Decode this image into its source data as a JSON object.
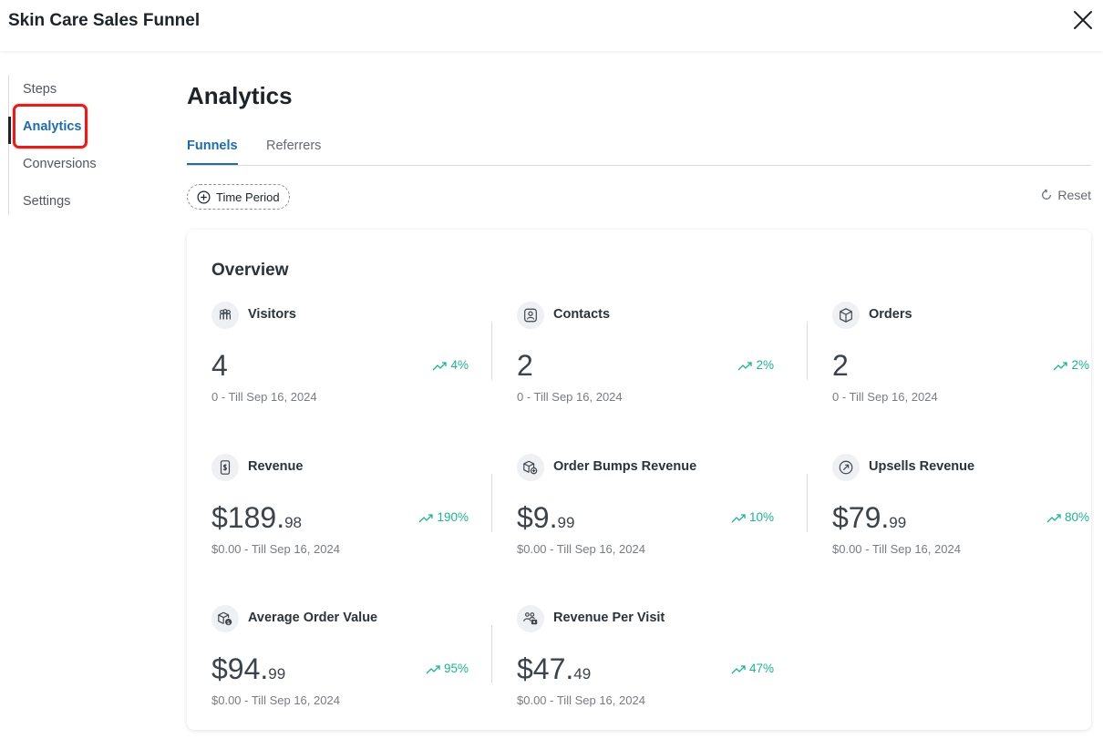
{
  "app": {
    "title": "Skin Care Sales Funnel"
  },
  "sidebar": {
    "items": [
      {
        "label": "Steps"
      },
      {
        "label": "Analytics"
      },
      {
        "label": "Conversions"
      },
      {
        "label": "Settings"
      }
    ],
    "active_item": "Analytics"
  },
  "main": {
    "title": "Analytics",
    "tabs": [
      {
        "label": "Funnels"
      },
      {
        "label": "Referrers"
      }
    ],
    "active_tab": "Funnels",
    "time_period_label": "Time Period",
    "reset_label": "Reset"
  },
  "overview": {
    "title": "Overview",
    "metrics": [
      {
        "label": "Visitors",
        "value_int": "4",
        "value_dec": "",
        "trend": "4%",
        "sub": "0 - Till Sep 16, 2024",
        "icon": "visitors-icon"
      },
      {
        "label": "Contacts",
        "value_int": "2",
        "value_dec": "",
        "trend": "2%",
        "sub": "0 - Till Sep 16, 2024",
        "icon": "contacts-icon"
      },
      {
        "label": "Orders",
        "value_int": "2",
        "value_dec": "",
        "trend": "2%",
        "sub": "0 - Till Sep 16, 2024",
        "icon": "box-icon"
      },
      {
        "label": "Revenue",
        "value_int": "$189.",
        "value_dec": "98",
        "trend": "190%",
        "sub": "$0.00 - Till Sep 16, 2024",
        "icon": "revenue-icon"
      },
      {
        "label": "Order Bumps Revenue",
        "value_int": "$9.",
        "value_dec": "99",
        "trend": "10%",
        "sub": "$0.00 - Till Sep 16, 2024",
        "icon": "order-bump-icon"
      },
      {
        "label": "Upsells Revenue",
        "value_int": "$79.",
        "value_dec": "99",
        "trend": "80%",
        "sub": "$0.00 - Till Sep 16, 2024",
        "icon": "upsell-icon"
      },
      {
        "label": "Average Order Value",
        "value_int": "$94.",
        "value_dec": "99",
        "trend": "95%",
        "sub": "$0.00 - Till Sep 16, 2024",
        "icon": "average-order-icon"
      },
      {
        "label": "Revenue Per Visit",
        "value_int": "$47.",
        "value_dec": "49",
        "trend": "47%",
        "sub": "$0.00 - Till Sep 16, 2024",
        "icon": "revenue-per-visit-icon"
      }
    ]
  },
  "colors": {
    "accent": "#1e6ca8",
    "trend_up": "#1fb191",
    "highlight": "#e01e1e"
  }
}
